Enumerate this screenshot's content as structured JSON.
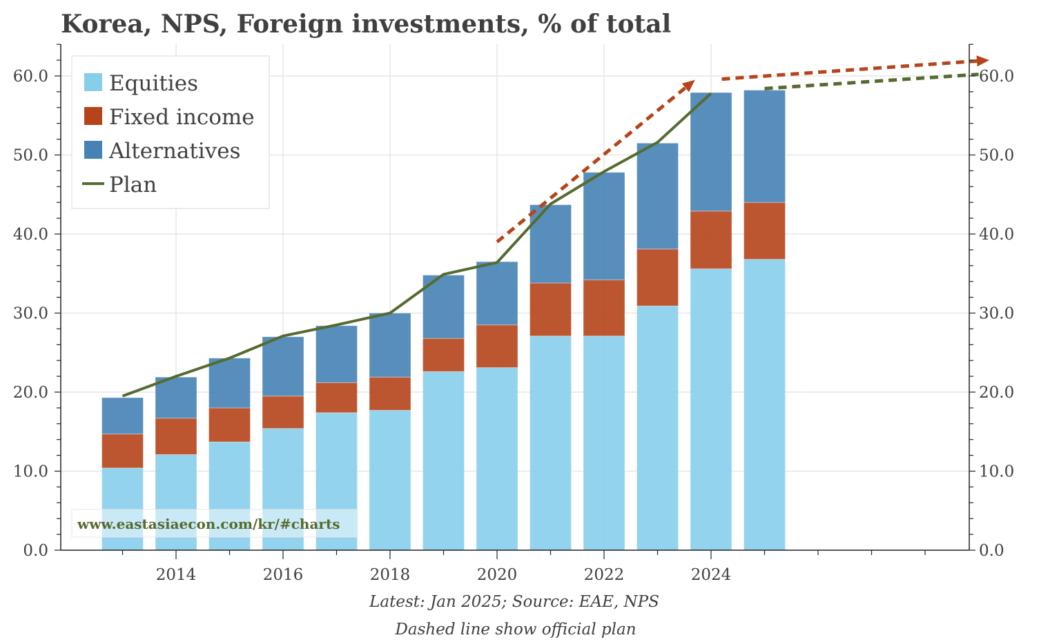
{
  "chart_data": {
    "type": "bar",
    "stacked": true,
    "title": "Korea, NPS, Foreign investments, % of total",
    "xlabel": "",
    "ylabel": "",
    "x": [
      2013,
      2014,
      2015,
      2016,
      2017,
      2018,
      2019,
      2020,
      2021,
      2022,
      2023,
      2024,
      2025
    ],
    "x_ticks": [
      2014,
      2016,
      2018,
      2020,
      2022,
      2024
    ],
    "x_tick_labels": [
      "2014",
      "2016",
      "2018",
      "2020",
      "2022",
      "2024"
    ],
    "xlim": [
      2012.0,
      2029.3
    ],
    "ylim": [
      0,
      64
    ],
    "y_ticks": [
      0,
      10,
      20,
      30,
      40,
      50,
      60
    ],
    "y_tick_labels": [
      "0.0",
      "10.0",
      "20.0",
      "30.0",
      "40.0",
      "50.0",
      "60.0"
    ],
    "y_right_tick_labels": [
      "0.0",
      "10.0",
      "20.0",
      "30.0",
      "40.0",
      "50.0",
      "60.0"
    ],
    "grid": true,
    "legend_position": "top-left",
    "series": [
      {
        "name": "Equities",
        "kind": "bar",
        "color": "#87ceeb",
        "values": [
          10.4,
          12.1,
          13.7,
          15.4,
          17.4,
          17.7,
          22.6,
          23.1,
          27.1,
          27.1,
          30.9,
          35.6,
          36.8
        ]
      },
      {
        "name": "Fixed income",
        "kind": "bar",
        "color": "#b5441a",
        "values": [
          4.3,
          4.6,
          4.3,
          4.1,
          3.8,
          4.2,
          4.2,
          5.4,
          6.7,
          7.1,
          7.2,
          7.3,
          7.2
        ]
      },
      {
        "name": "Alternatives",
        "kind": "bar",
        "color": "#4682b4",
        "values": [
          4.6,
          5.2,
          6.3,
          7.5,
          7.2,
          8.1,
          8.0,
          8.0,
          9.9,
          13.6,
          13.4,
          15.0,
          14.2
        ]
      },
      {
        "name": "Plan",
        "kind": "line",
        "color": "#556b2f",
        "x": [
          2013,
          2014,
          2015,
          2016,
          2017,
          2018,
          2019,
          2020,
          2021,
          2022,
          2023,
          2024
        ],
        "values": [
          19.5,
          22.0,
          24.3,
          27.1,
          28.5,
          30.0,
          34.9,
          36.4,
          43.8,
          47.9,
          51.6,
          57.8
        ]
      }
    ],
    "annotations": [
      {
        "type": "dashed-arrow",
        "color": "#b5441a",
        "from": [
          2020,
          39.0
        ],
        "to": [
          2023.7,
          59.5
        ],
        "arrowhead": true
      },
      {
        "type": "dashed-arrow",
        "color": "#b5441a",
        "from": [
          2024.2,
          59.6
        ],
        "to": [
          2029.2,
          62.0
        ],
        "arrowhead": true
      },
      {
        "type": "dashed-line",
        "color": "#556b2f",
        "from": [
          2025.0,
          58.4
        ],
        "to": [
          2029.0,
          60.2
        ],
        "arrowhead": false
      }
    ],
    "footer": [
      "Latest: Jan 2025; Source: EAE, NPS",
      "Dashed line show official plan"
    ],
    "watermark": "www.eastasiaecon.com/kr/#charts"
  }
}
